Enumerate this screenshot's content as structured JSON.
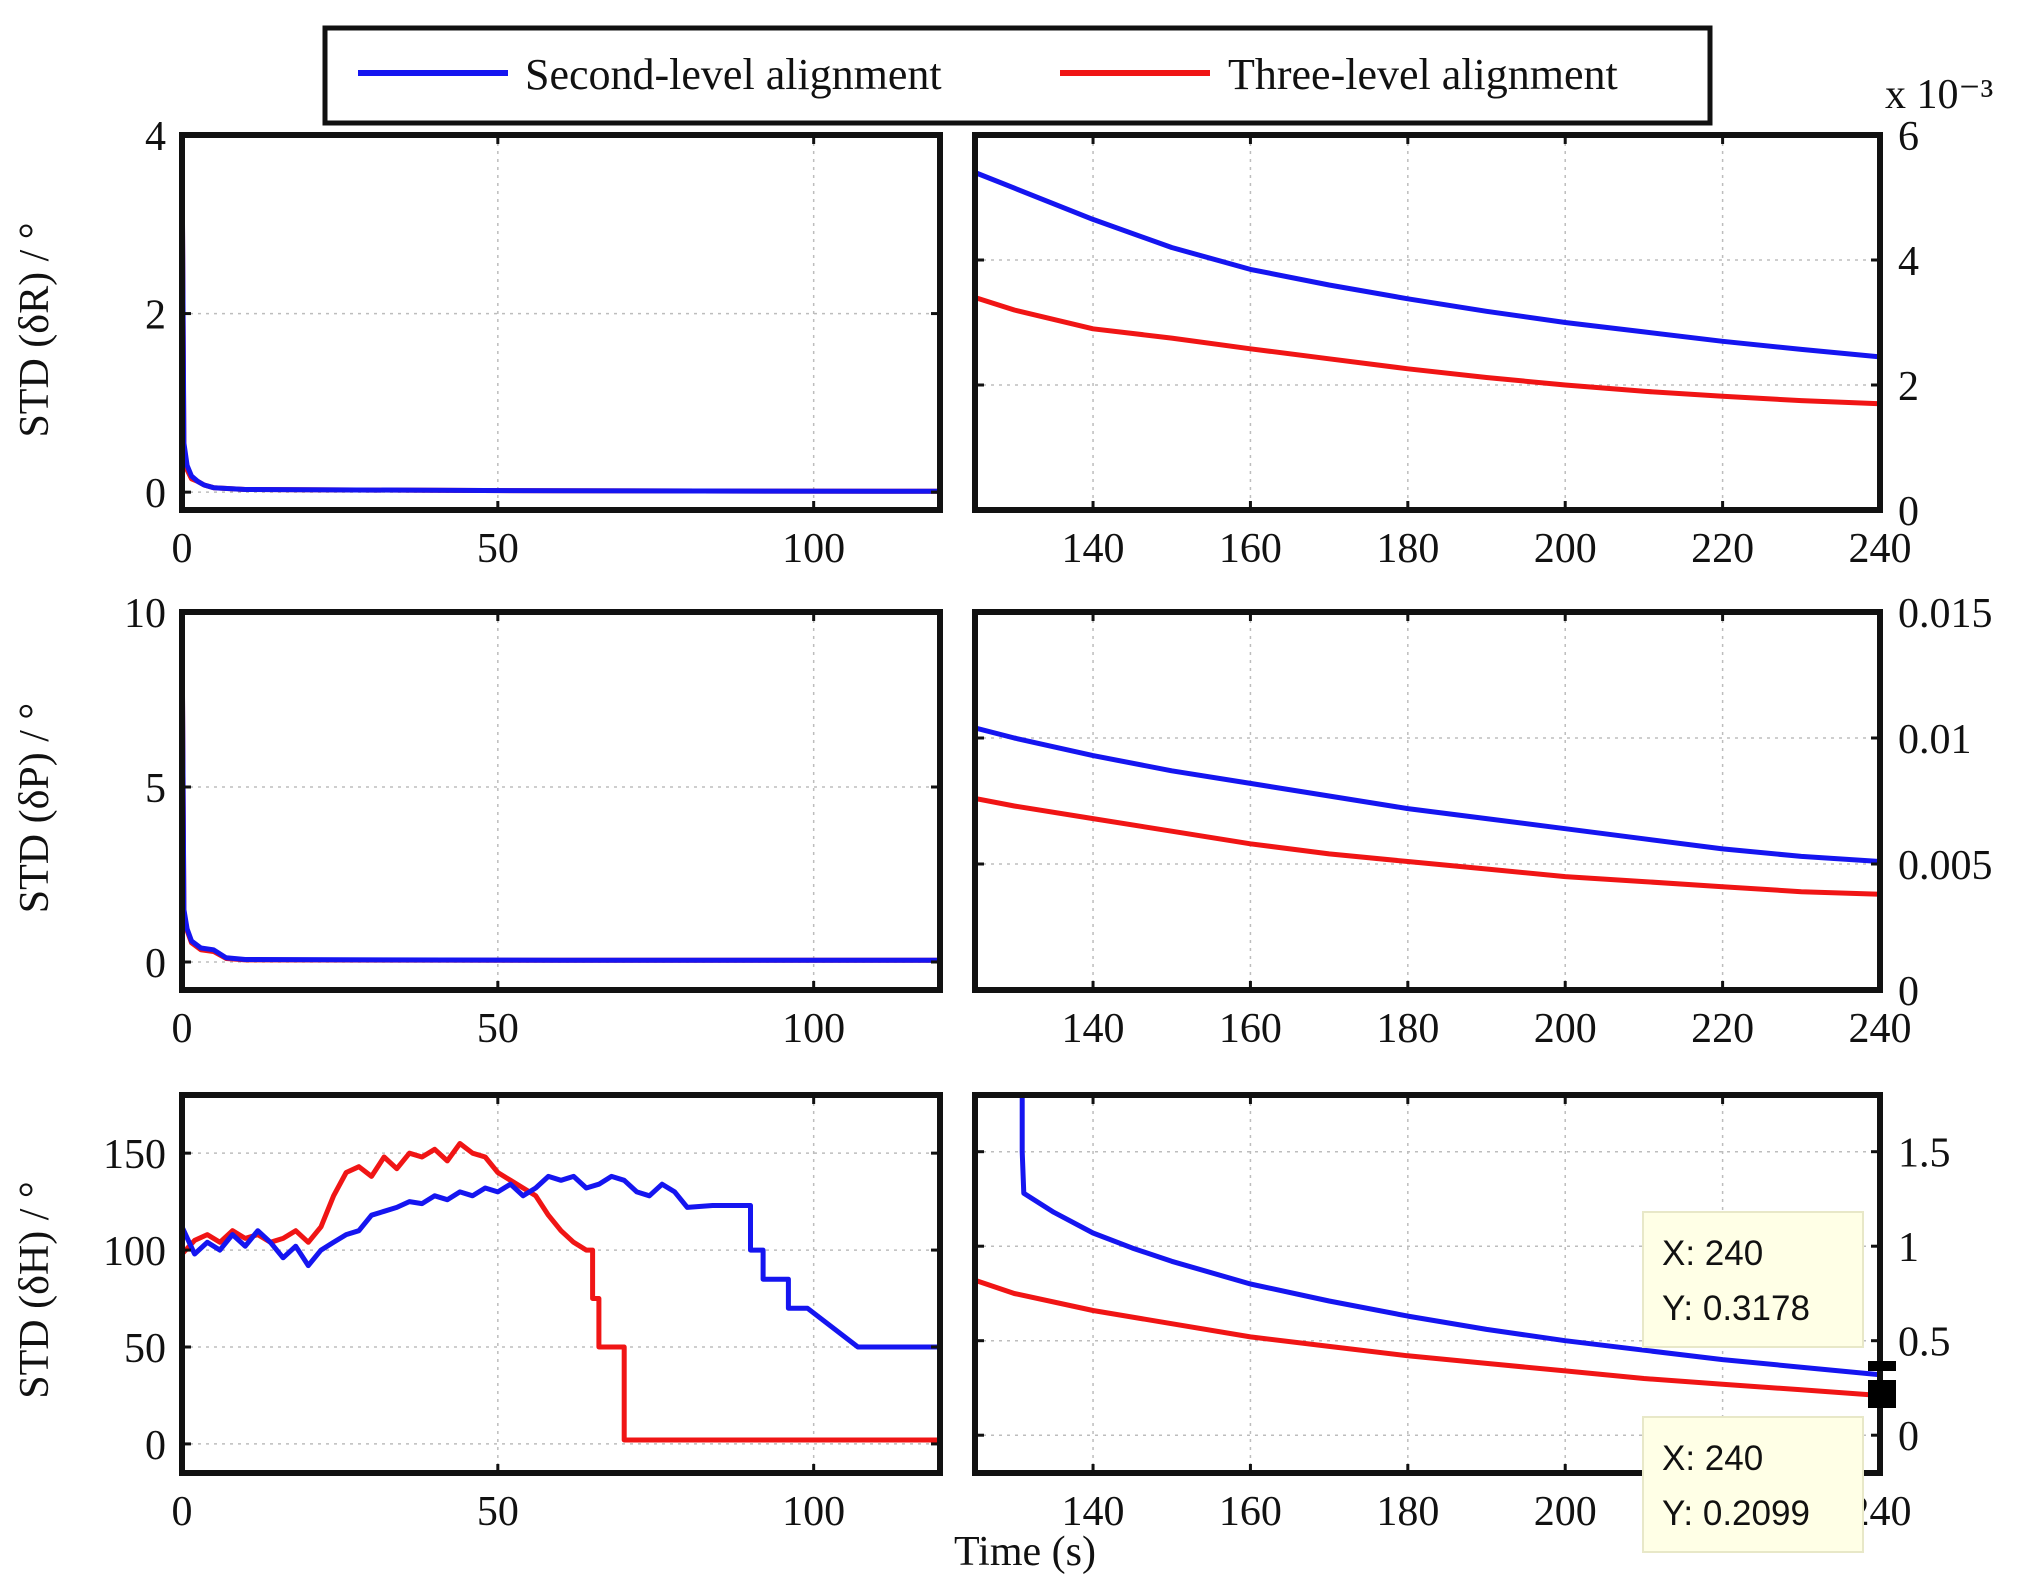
{
  "legend": {
    "series": [
      {
        "name": "Second-level alignment",
        "color": "#1515f0"
      },
      {
        "name": "Three-level alignment",
        "color": "#f01515"
      }
    ]
  },
  "chart_data": [
    {
      "id": "R-left",
      "type": "line",
      "ylabel": "STD (δR) / °",
      "xlim": [
        0,
        120
      ],
      "ylim": [
        -0.2,
        4
      ],
      "xticks": [
        0,
        50,
        100
      ],
      "xtick_labels": [
        "0",
        "50",
        "100"
      ],
      "yticks": [
        0,
        2,
        4
      ],
      "ytick_labels": [
        "0",
        "2",
        "4"
      ],
      "series": [
        {
          "name": "Three-level alignment",
          "x": [
            0,
            0.3,
            0.8,
            1.5,
            2.5,
            3.5,
            5,
            10,
            60,
            120
          ],
          "y": [
            3.9,
            0.4,
            0.25,
            0.15,
            0.12,
            0.08,
            0.05,
            0.03,
            0.015,
            0.01
          ]
        },
        {
          "name": "Second-level alignment",
          "x": [
            0,
            0.3,
            0.8,
            1.5,
            2.5,
            3.5,
            5,
            10,
            60,
            120
          ],
          "y": [
            3.9,
            0.55,
            0.3,
            0.18,
            0.12,
            0.08,
            0.05,
            0.03,
            0.015,
            0.01
          ]
        }
      ]
    },
    {
      "id": "R-right",
      "type": "line",
      "yaxis_side": "right",
      "exponent_label": "x 10⁻³",
      "xlim": [
        125,
        240
      ],
      "ylim": [
        0,
        6
      ],
      "xticks": [
        140,
        160,
        180,
        200,
        220,
        240
      ],
      "xtick_labels": [
        "140",
        "160",
        "180",
        "200",
        "220",
        "240"
      ],
      "yticks": [
        0,
        2,
        4,
        6
      ],
      "ytick_labels": [
        "0",
        "2",
        "4",
        "6"
      ],
      "series": [
        {
          "name": "Second-level alignment",
          "x": [
            125,
            130,
            140,
            150,
            160,
            170,
            180,
            190,
            200,
            210,
            220,
            230,
            240
          ],
          "y": [
            5.4,
            5.15,
            4.65,
            4.2,
            3.85,
            3.6,
            3.38,
            3.18,
            3.0,
            2.85,
            2.7,
            2.57,
            2.45
          ]
        },
        {
          "name": "Three-level alignment",
          "x": [
            125,
            130,
            140,
            150,
            160,
            170,
            180,
            190,
            200,
            210,
            220,
            230,
            240
          ],
          "y": [
            3.4,
            3.2,
            2.9,
            2.75,
            2.58,
            2.42,
            2.26,
            2.12,
            2.0,
            1.9,
            1.82,
            1.75,
            1.7
          ]
        }
      ]
    },
    {
      "id": "P-left",
      "type": "line",
      "ylabel": "STD (δP) / °",
      "xlim": [
        0,
        120
      ],
      "ylim": [
        -0.8,
        10
      ],
      "xticks": [
        0,
        50,
        100
      ],
      "xtick_labels": [
        "0",
        "50",
        "100"
      ],
      "yticks": [
        0,
        5,
        10
      ],
      "ytick_labels": [
        "0",
        "5",
        "10"
      ],
      "series": [
        {
          "name": "Three-level alignment",
          "x": [
            0,
            0.3,
            0.8,
            1.5,
            3,
            5,
            7,
            10,
            60,
            120
          ],
          "y": [
            9.8,
            1.3,
            0.9,
            0.55,
            0.35,
            0.3,
            0.1,
            0.06,
            0.05,
            0.05
          ]
        },
        {
          "name": "Second-level alignment",
          "x": [
            0,
            0.3,
            0.8,
            1.5,
            3,
            5,
            7,
            10,
            60,
            120
          ],
          "y": [
            9.8,
            1.5,
            0.95,
            0.6,
            0.4,
            0.35,
            0.12,
            0.07,
            0.05,
            0.05
          ]
        }
      ]
    },
    {
      "id": "P-right",
      "type": "line",
      "yaxis_side": "right",
      "xlim": [
        125,
        240
      ],
      "ylim": [
        0,
        0.015
      ],
      "xticks": [
        140,
        160,
        180,
        200,
        220,
        240
      ],
      "xtick_labels": [
        "140",
        "160",
        "180",
        "200",
        "220",
        "240"
      ],
      "yticks": [
        0,
        0.005,
        0.01,
        0.015
      ],
      "ytick_labels": [
        "0",
        "0.005",
        "0.01",
        "0.015"
      ],
      "series": [
        {
          "name": "Second-level alignment",
          "x": [
            125,
            130,
            140,
            150,
            160,
            170,
            180,
            190,
            200,
            210,
            220,
            230,
            240
          ],
          "y": [
            0.0104,
            0.01,
            0.0093,
            0.0087,
            0.0082,
            0.0077,
            0.0072,
            0.0068,
            0.0064,
            0.006,
            0.0056,
            0.0053,
            0.0051
          ]
        },
        {
          "name": "Three-level alignment",
          "x": [
            125,
            130,
            140,
            150,
            160,
            170,
            180,
            190,
            200,
            210,
            220,
            230,
            240
          ],
          "y": [
            0.0076,
            0.0073,
            0.0068,
            0.0063,
            0.0058,
            0.0054,
            0.0051,
            0.0048,
            0.0045,
            0.0043,
            0.0041,
            0.0039,
            0.0038
          ]
        }
      ]
    },
    {
      "id": "H-left",
      "type": "line",
      "ylabel": "STD (δH) / °",
      "xlim": [
        0,
        120
      ],
      "ylim": [
        -15,
        180
      ],
      "xticks": [
        0,
        50,
        100
      ],
      "xtick_labels": [
        "0",
        "50",
        "100"
      ],
      "yticks": [
        0,
        50,
        100,
        150
      ],
      "ytick_labels": [
        "0",
        "50",
        "100",
        "150"
      ],
      "series": [
        {
          "name": "Three-level alignment",
          "x": [
            0,
            2,
            4,
            6,
            8,
            10,
            12,
            14,
            16,
            18,
            20,
            22,
            24,
            26,
            28,
            30,
            32,
            34,
            36,
            38,
            40,
            42,
            44,
            46,
            48,
            50,
            52,
            54,
            56,
            58,
            60,
            62,
            64,
            64,
            65,
            65,
            66,
            66,
            70,
            70,
            71,
            71,
            120
          ],
          "y": [
            98,
            105,
            108,
            104,
            110,
            106,
            108,
            104,
            106,
            110,
            104,
            112,
            128,
            140,
            143,
            138,
            148,
            142,
            150,
            148,
            152,
            146,
            155,
            150,
            148,
            140,
            136,
            132,
            128,
            118,
            110,
            104,
            100,
            100,
            100,
            75,
            75,
            50,
            50,
            2,
            2,
            2,
            2
          ]
        },
        {
          "name": "Second-level alignment",
          "x": [
            0,
            2,
            4,
            6,
            8,
            10,
            12,
            14,
            16,
            18,
            20,
            22,
            24,
            26,
            28,
            30,
            32,
            34,
            36,
            38,
            40,
            42,
            44,
            46,
            48,
            50,
            52,
            54,
            56,
            58,
            60,
            62,
            64,
            66,
            68,
            70,
            72,
            74,
            76,
            78,
            80,
            84,
            90,
            90,
            92,
            92,
            96,
            96,
            99,
            99,
            107,
            107,
            120
          ],
          "y": [
            112,
            98,
            104,
            100,
            108,
            102,
            110,
            104,
            96,
            102,
            92,
            100,
            104,
            108,
            110,
            118,
            120,
            122,
            125,
            124,
            128,
            126,
            130,
            128,
            132,
            130,
            134,
            128,
            132,
            138,
            136,
            138,
            132,
            134,
            138,
            136,
            130,
            128,
            134,
            130,
            122,
            123,
            123,
            100,
            100,
            85,
            85,
            70,
            70,
            70,
            50,
            50,
            50
          ]
        }
      ]
    },
    {
      "id": "H-right",
      "type": "line",
      "yaxis_side": "right",
      "xlim": [
        125,
        240
      ],
      "ylim": [
        -0.2,
        1.8
      ],
      "xticks": [
        140,
        160,
        180,
        200,
        220,
        240
      ],
      "xtick_labels": [
        "140",
        "160",
        "180",
        "200",
        "220",
        "240"
      ],
      "yticks": [
        0,
        0.5,
        1,
        1.5
      ],
      "ytick_labels": [
        "0",
        "0.5",
        "1",
        "1.5"
      ],
      "series": [
        {
          "name": "Second-level alignment",
          "x": [
            131,
            131,
            131.2,
            135,
            140,
            145,
            150,
            160,
            170,
            180,
            190,
            200,
            210,
            220,
            230,
            240
          ],
          "y": [
            1.8,
            1.5,
            1.28,
            1.18,
            1.07,
            0.99,
            0.92,
            0.8,
            0.71,
            0.63,
            0.56,
            0.5,
            0.45,
            0.4,
            0.36,
            0.32
          ]
        },
        {
          "name": "Three-level alignment",
          "x": [
            125,
            130,
            140,
            150,
            160,
            170,
            180,
            190,
            200,
            210,
            220,
            230,
            240
          ],
          "y": [
            0.82,
            0.75,
            0.66,
            0.59,
            0.52,
            0.47,
            0.42,
            0.38,
            0.34,
            0.3,
            0.27,
            0.24,
            0.21
          ]
        }
      ],
      "datatips": [
        {
          "x_label": "X: 240",
          "y_label": "Y: 0.3178",
          "x": 240,
          "y": 0.3178
        },
        {
          "x_label": "X: 240",
          "y_label": "Y: 0.2099",
          "x": 240,
          "y": 0.2099
        }
      ]
    }
  ],
  "xlabel": "Time (s)"
}
